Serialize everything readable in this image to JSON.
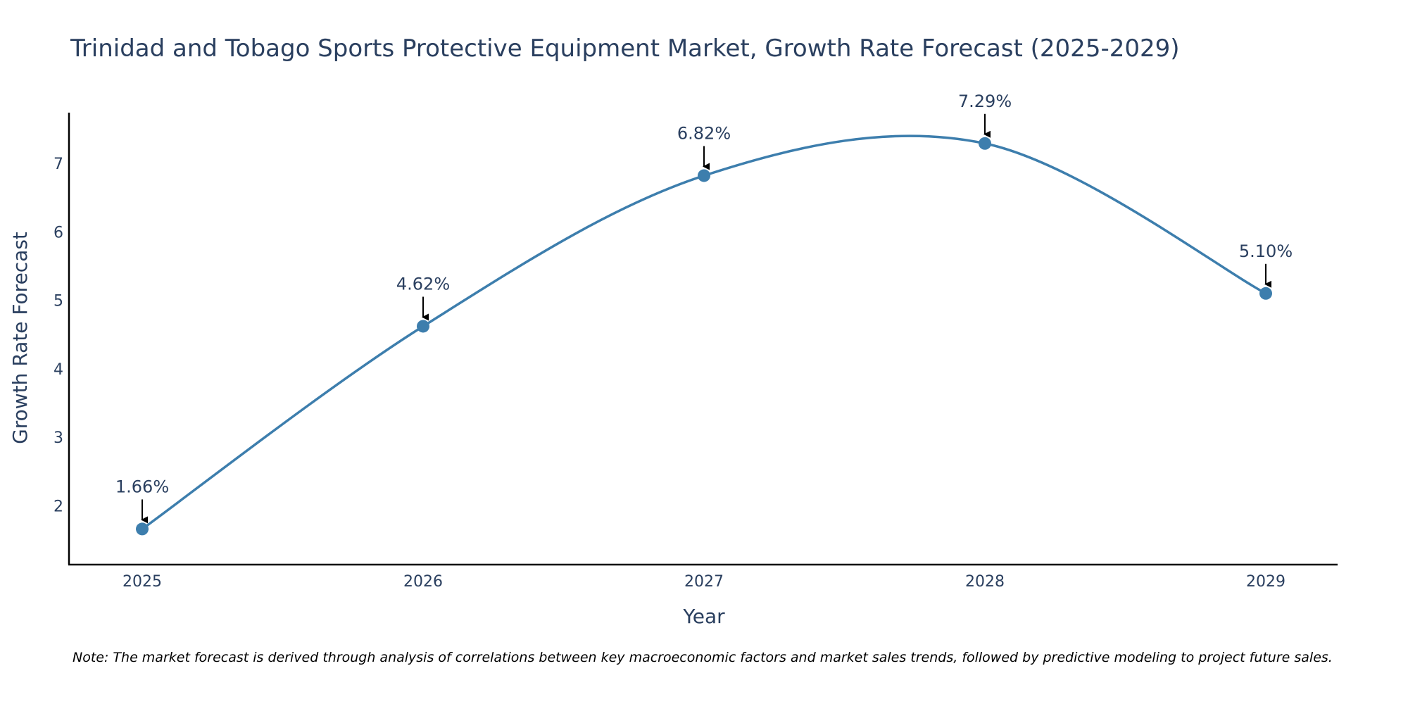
{
  "chart_data": {
    "type": "line",
    "title": "Trinidad and Tobago Sports Protective Equipment Market, Growth Rate Forecast (2025-2029)",
    "xlabel": "Year",
    "ylabel": "Growth Rate Forecast",
    "categories": [
      "2025",
      "2026",
      "2027",
      "2028",
      "2029"
    ],
    "series": [
      {
        "name": "Growth Rate Forecast",
        "values": [
          1.66,
          4.62,
          6.82,
          7.29,
          5.1
        ],
        "labels": [
          "1.66%",
          "4.62%",
          "6.82%",
          "7.29%",
          "5.10%"
        ]
      }
    ],
    "yticks": [
      "2",
      "3",
      "4",
      "5",
      "6",
      "7"
    ],
    "ytick_values": [
      2,
      3,
      4,
      5,
      6,
      7
    ],
    "ylim": [
      1.14,
      7.74
    ],
    "line_shape": "spline",
    "grid": false,
    "line_color": "#3d7ead",
    "marker_color": "#3d7ead",
    "note": "Note: The market forecast is derived through analysis of correlations between key macroeconomic factors and market sales trends, followed by predictive modeling to project future sales."
  }
}
